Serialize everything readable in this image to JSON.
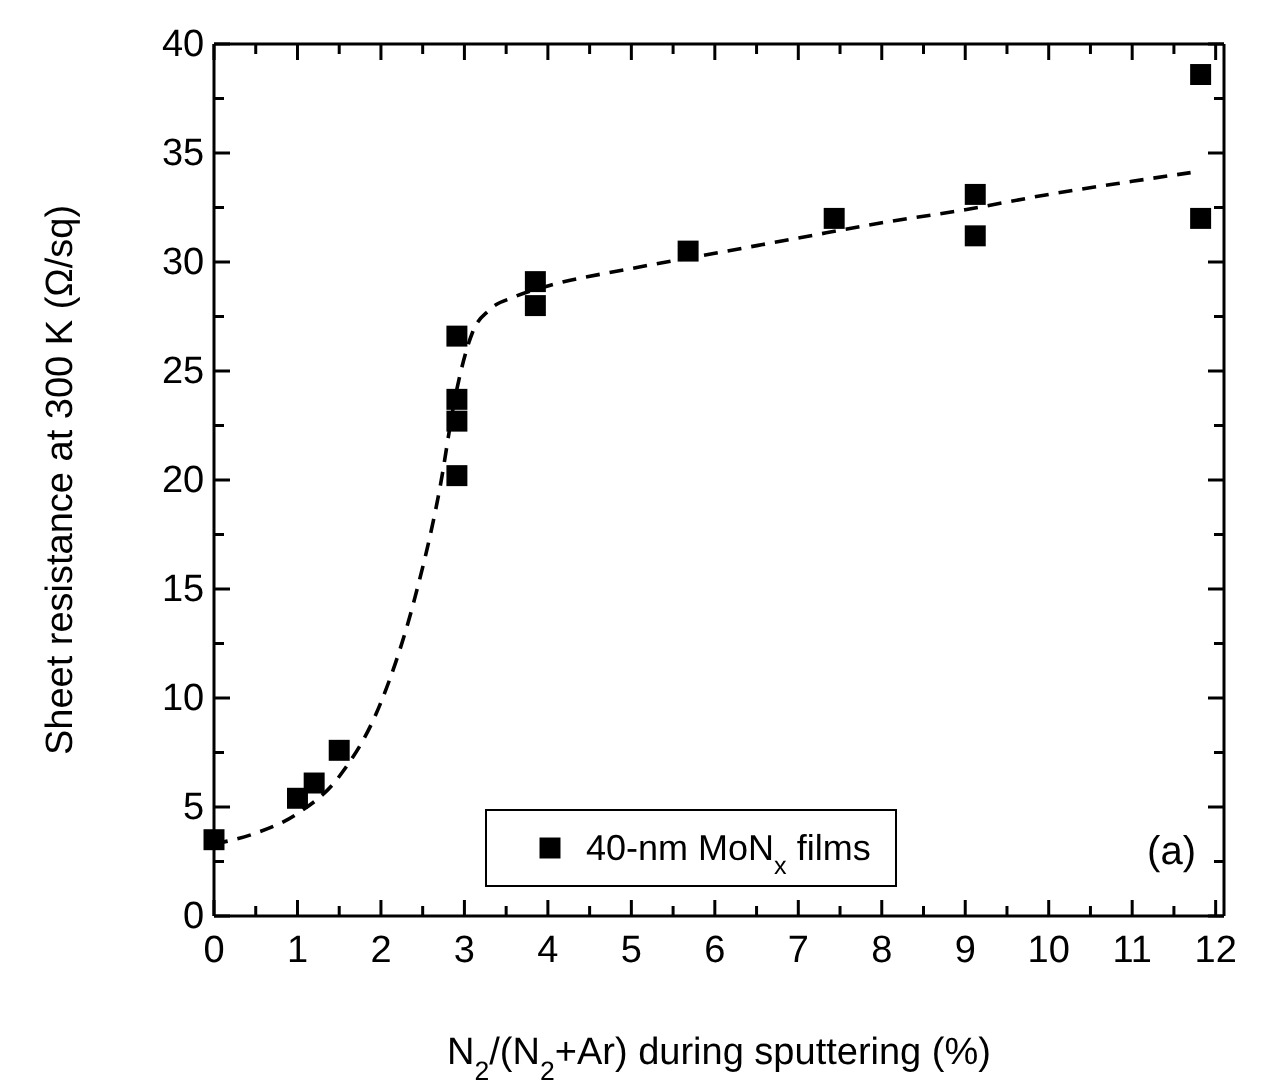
{
  "chart_data": {
    "type": "scatter",
    "xlabel": "N$_{2}$/(N$_{2}$+Ar) during sputtering (%)",
    "ylabel": "Sheet resistance at 300 K (Ω/sq)",
    "xlim": [
      0,
      12.1
    ],
    "ylim": [
      0,
      40
    ],
    "xticks": [
      0,
      {
        "value": 0.5,
        "label": null
      },
      1,
      {
        "value": 1.5,
        "label": null
      },
      2,
      {
        "value": 2.5,
        "label": null
      },
      3,
      {
        "value": 3.5,
        "label": null
      },
      4,
      {
        "value": 4.5,
        "label": null
      },
      5,
      {
        "value": 5.5,
        "label": null
      },
      6,
      {
        "value": 6.5,
        "label": null
      },
      7,
      {
        "value": 7.5,
        "label": null
      },
      8,
      {
        "value": 8.5,
        "label": null
      },
      9,
      {
        "value": 9.5,
        "label": null
      },
      10,
      {
        "value": 10.5,
        "label": null
      },
      11,
      {
        "value": 11.5,
        "label": null
      },
      12
    ],
    "yticks": [
      0,
      {
        "value": 2.5,
        "label": null
      },
      5,
      {
        "value": 7.5,
        "label": null
      },
      10,
      {
        "value": 12.5,
        "label": null
      },
      15,
      {
        "value": 17.5,
        "label": null
      },
      20,
      {
        "value": 22.5,
        "label": null
      },
      25,
      {
        "value": 27.5,
        "label": null
      },
      30,
      {
        "value": 32.5,
        "label": null
      },
      35,
      {
        "value": 37.5,
        "label": null
      },
      40
    ],
    "legend": "bottom right",
    "annotations": [
      "(a)"
    ],
    "series": [
      {
        "name": "40-nm MoN$_{x}$ films",
        "marker": "square",
        "color": "#000000",
        "x": [
          0,
          1,
          1.2,
          1.5,
          2.91,
          2.91,
          2.91,
          2.91,
          3.85,
          3.85,
          5.68,
          7.43,
          9.12,
          9.12,
          11.82,
          11.82
        ],
        "values": [
          3.5,
          5.4,
          6.1,
          7.6,
          20.2,
          22.7,
          23.7,
          26.6,
          28.0,
          29.1,
          30.5,
          32.0,
          33.1,
          31.2,
          38.6,
          32.0
        ]
      },
      {
        "type": "line",
        "line_style": "dashed",
        "marker": "none",
        "color": "#000000",
        "x": [
          0,
          0.5,
          1,
          1.5,
          2,
          2.4,
          2.7,
          2.9,
          3.1,
          3.3,
          3.6,
          4,
          5,
          6,
          7,
          8,
          9,
          10,
          11,
          11.7
        ],
        "values": [
          3.3,
          3.8,
          4.7,
          6.4,
          9.8,
          14.5,
          19.5,
          24,
          26.8,
          27.8,
          28.4,
          28.9,
          29.7,
          30.4,
          31.1,
          31.8,
          32.4,
          33.1,
          33.7,
          34.1
        ]
      }
    ]
  }
}
